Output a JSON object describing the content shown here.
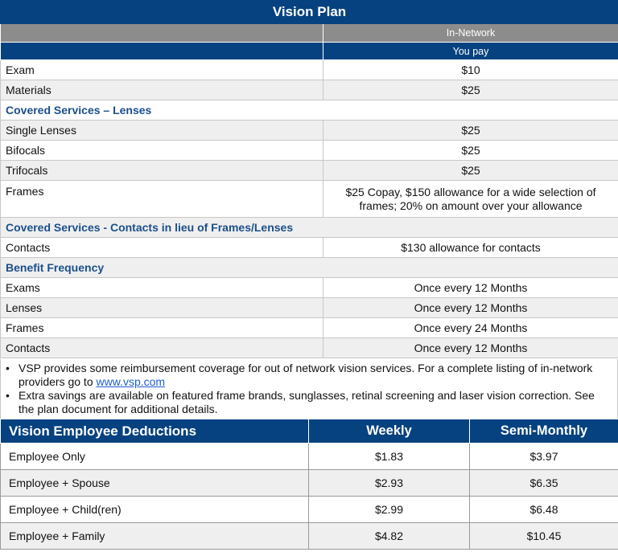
{
  "vision_plan": {
    "title": "Vision Plan",
    "network_label": "In-Network",
    "you_pay_label": "You pay",
    "rows": [
      {
        "label": "Exam",
        "value": "$10"
      },
      {
        "label": "Materials",
        "value": "$25"
      }
    ],
    "sections": [
      {
        "title": "Covered Services – Lenses",
        "rows": [
          {
            "label": "Single Lenses",
            "value": "$25"
          },
          {
            "label": "Bifocals",
            "value": "$25"
          },
          {
            "label": "Trifocals",
            "value": "$25"
          },
          {
            "label": "Frames",
            "value_line1": "$25 Copay, $150 allowance for a wide selection of",
            "value_line2": "frames; 20% on amount over your allowance"
          }
        ]
      },
      {
        "title": "Covered Services - Contacts in lieu of Frames/Lenses",
        "rows": [
          {
            "label": "Contacts",
            "value": "$130 allowance for contacts"
          }
        ]
      },
      {
        "title": "Benefit Frequency",
        "rows": [
          {
            "label": "Exams",
            "value": "Once every 12 Months"
          },
          {
            "label": "Lenses",
            "value": "Once every 12 Months"
          },
          {
            "label": "Frames",
            "value": "Once every 24 Months"
          },
          {
            "label": "Contacts",
            "value": "Once every 12 Months"
          }
        ]
      }
    ],
    "notes": {
      "note1_text": "VSP provides some reimbursement coverage for out of network vision services. For a complete listing of in-network providers go to ",
      "note1_link": "www.vsp.com",
      "note2_text": "Extra savings are available on featured frame brands, sunglasses, retinal screening and laser vision correction. See the plan document for additional details."
    }
  },
  "deductions": {
    "title": "Vision Employee Deductions",
    "col_weekly": "Weekly",
    "col_semimonthly": "Semi-Monthly",
    "rows": [
      {
        "label": "Employee Only",
        "weekly": "$1.83",
        "semimonthly": "$3.97"
      },
      {
        "label": "Employee + Spouse",
        "weekly": "$2.93",
        "semimonthly": "$6.35"
      },
      {
        "label": "Employee + Child(ren)",
        "weekly": "$2.99",
        "semimonthly": "$6.48"
      },
      {
        "label": "Employee + Family",
        "weekly": "$4.82",
        "semimonthly": "$10.45"
      }
    ]
  }
}
